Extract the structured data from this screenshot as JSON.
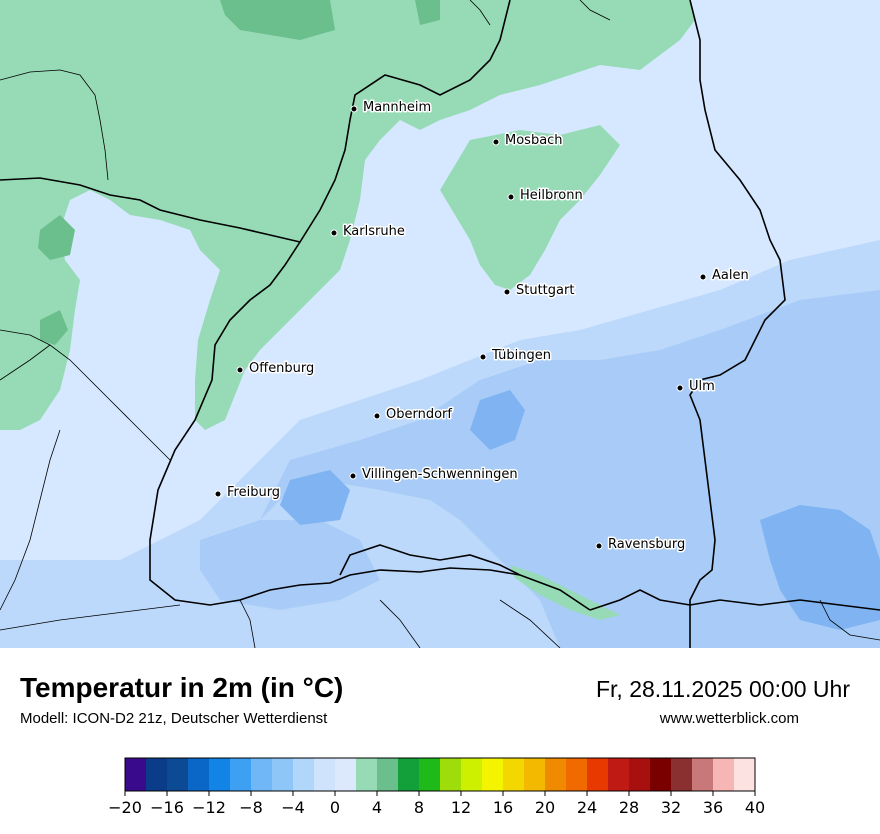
{
  "map": {
    "cities": [
      {
        "name": "Mannheim"
      },
      {
        "name": "Mosbach"
      },
      {
        "name": "Heilbronn"
      },
      {
        "name": "Karlsruhe"
      },
      {
        "name": "Aalen"
      },
      {
        "name": "Stuttgart"
      },
      {
        "name": "Tübingen"
      },
      {
        "name": "Offenburg"
      },
      {
        "name": "Ulm"
      },
      {
        "name": "Oberndorf"
      },
      {
        "name": "Villingen-Schwenningen"
      },
      {
        "name": "Freiburg"
      },
      {
        "name": "Ravensburg"
      }
    ],
    "colors": {
      "cold_blue": "#d6e8ff",
      "mid_blue": "#bcd9fb",
      "blue": "#a8ccf7",
      "deep_blue": "#7fb3f2",
      "green": "#96dbb5",
      "dark_green": "#6bbf8c"
    }
  },
  "header": {
    "title": "Temperatur in 2m (in °C)",
    "subtitle": "Modell: ICON-D2 21z, Deutscher Wetterdienst",
    "datetime": "Fr, 28.11.2025 00:00 Uhr",
    "website": "www.wetterblick.com"
  },
  "legend": {
    "ticks": [
      "−20",
      "−16",
      "−12",
      "−8",
      "−4",
      "0",
      "4",
      "8",
      "12",
      "16",
      "20",
      "24",
      "28",
      "32",
      "36",
      "40"
    ],
    "colors": [
      "#3a0a8c",
      "#0b3c8a",
      "#0d4a95",
      "#0a67c7",
      "#1184e6",
      "#3ea0f3",
      "#6fb7f7",
      "#8fc6f8",
      "#b0d6fa",
      "#cfe4fc",
      "#dce9fd",
      "#96dbb5",
      "#6bbf8c",
      "#13a03a",
      "#1fb91a",
      "#9fdd0a",
      "#cdf000",
      "#f4f400",
      "#f2d800",
      "#f2b900",
      "#f08a00",
      "#f06a00",
      "#e83a00",
      "#c01a14",
      "#a80f0f",
      "#7a0000",
      "#8a3030",
      "#c87878",
      "#f7b6b6",
      "#fde2e2"
    ]
  }
}
